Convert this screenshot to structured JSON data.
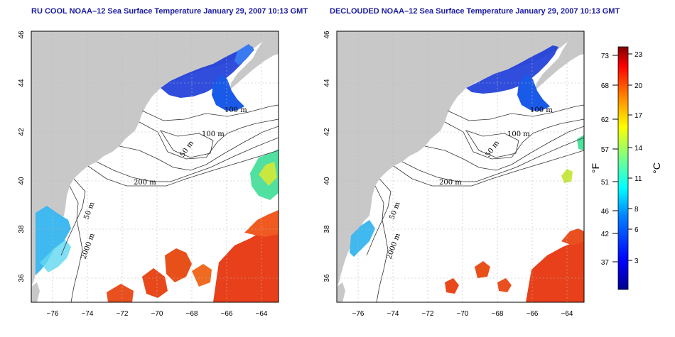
{
  "left_panel": {
    "title": "RU COOL NOAA–12 Sea Surface Temperature January 29, 2007 10:13 GMT"
  },
  "right_panel": {
    "title": "DECLOUDED NOAA–12 Sea Surface Temperature January 29, 2007 10:13 GMT"
  },
  "axes": {
    "x_ticks": [
      "−76",
      "−74",
      "−72",
      "−70",
      "−68",
      "−66",
      "−64"
    ],
    "y_ticks": [
      "36",
      "38",
      "40",
      "42",
      "44",
      "46"
    ],
    "lon_range": [
      -77.2,
      -63.1
    ],
    "lat_range": [
      35.1,
      46.0
    ]
  },
  "contour_labels": [
    "100 m",
    "100 m",
    "50 m",
    "200 m",
    "50 m",
    "2000 m"
  ],
  "colorbar": {
    "fahrenheit_ticks": [
      "73",
      "68",
      "62",
      "57",
      "51",
      "46",
      "42",
      "37"
    ],
    "celsius_ticks": [
      "23",
      "20",
      "17",
      "14",
      "11",
      "8",
      "6",
      "3"
    ],
    "fahrenheit_unit": "°F",
    "celsius_unit": "°C"
  },
  "colors": {
    "land": "#c8c8c8",
    "title": "#1a1aa0",
    "warm": "#e8401a",
    "cold": "#1a3ad8"
  }
}
